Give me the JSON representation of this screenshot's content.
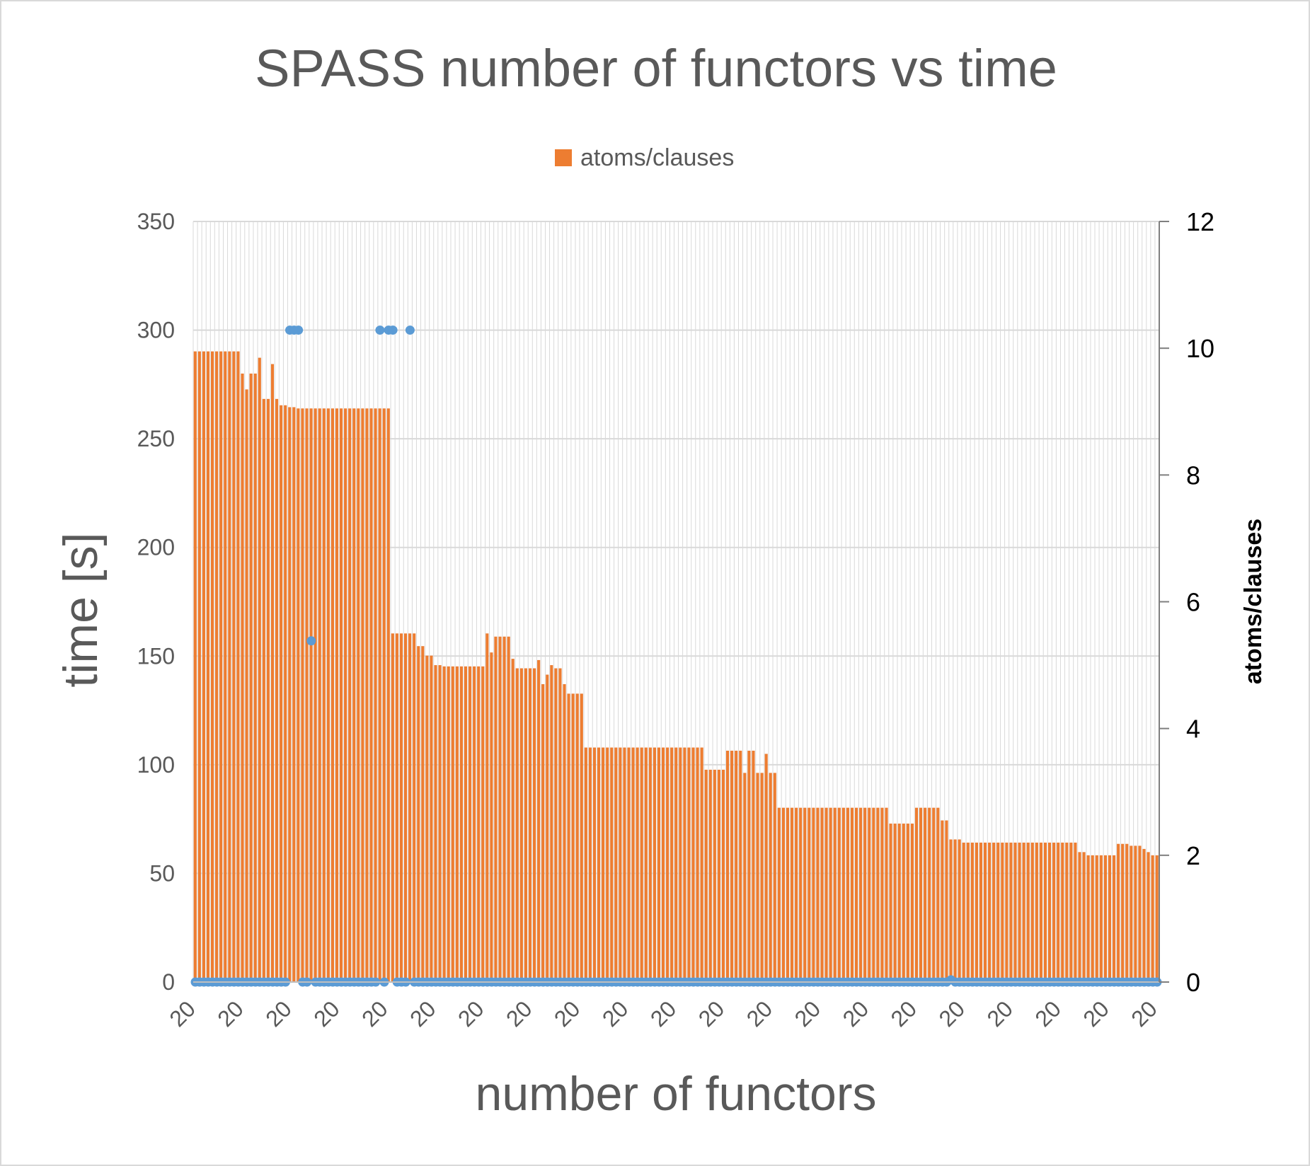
{
  "chart_data": {
    "type": "bar+scatter",
    "title": "SPASS number of functors vs time",
    "xlabel": "number of functors",
    "ylabel": "time [s]",
    "y2label": "atoms/clauses",
    "ylim": [
      0,
      350
    ],
    "y2lim": [
      0,
      12
    ],
    "yticks": [
      "0",
      "50",
      "100",
      "150",
      "200",
      "250",
      "300",
      "350"
    ],
    "y2ticks": [
      "0",
      "2",
      "4",
      "6",
      "8",
      "10",
      "12"
    ],
    "x_tick_label": "20",
    "x_tick_count": 21,
    "legend": {
      "entries": [
        "atoms/clauses"
      ],
      "position": "top"
    },
    "grid": true,
    "colors": {
      "bars": "#ED7D31",
      "points": "#5B9BD5",
      "grid": "#d9d9d9",
      "text": "#595959"
    },
    "bar_segments": [
      {
        "n": 11,
        "v": 9.95
      },
      {
        "n": 1,
        "v": 9.6
      },
      {
        "n": 1,
        "v": 9.35
      },
      {
        "n": 1,
        "v": 9.6
      },
      {
        "n": 1,
        "v": 9.6
      },
      {
        "n": 1,
        "v": 9.85
      },
      {
        "n": 2,
        "v": 9.2
      },
      {
        "n": 1,
        "v": 9.75
      },
      {
        "n": 1,
        "v": 9.2
      },
      {
        "n": 2,
        "v": 9.1
      },
      {
        "n": 2,
        "v": 9.07
      },
      {
        "n": 22,
        "v": 9.05
      },
      {
        "n": 6,
        "v": 5.5
      },
      {
        "n": 2,
        "v": 5.3
      },
      {
        "n": 2,
        "v": 5.15
      },
      {
        "n": 2,
        "v": 5.0
      },
      {
        "n": 10,
        "v": 4.98
      },
      {
        "n": 1,
        "v": 5.5
      },
      {
        "n": 1,
        "v": 5.2
      },
      {
        "n": 1,
        "v": 5.45
      },
      {
        "n": 3,
        "v": 5.45
      },
      {
        "n": 1,
        "v": 5.1
      },
      {
        "n": 5,
        "v": 4.95
      },
      {
        "n": 1,
        "v": 5.08
      },
      {
        "n": 1,
        "v": 4.7
      },
      {
        "n": 1,
        "v": 4.85
      },
      {
        "n": 1,
        "v": 5.0
      },
      {
        "n": 2,
        "v": 4.95
      },
      {
        "n": 1,
        "v": 4.7
      },
      {
        "n": 4,
        "v": 4.55
      },
      {
        "n": 28,
        "v": 3.7
      },
      {
        "n": 5,
        "v": 3.35
      },
      {
        "n": 4,
        "v": 3.65
      },
      {
        "n": 1,
        "v": 3.3
      },
      {
        "n": 2,
        "v": 3.65
      },
      {
        "n": 2,
        "v": 3.3
      },
      {
        "n": 1,
        "v": 3.6
      },
      {
        "n": 2,
        "v": 3.3
      },
      {
        "n": 26,
        "v": 2.75
      },
      {
        "n": 6,
        "v": 2.5
      },
      {
        "n": 6,
        "v": 2.75
      },
      {
        "n": 2,
        "v": 2.55
      },
      {
        "n": 3,
        "v": 2.25
      },
      {
        "n": 27,
        "v": 2.2
      },
      {
        "n": 2,
        "v": 2.05
      },
      {
        "n": 7,
        "v": 2.0
      },
      {
        "n": 3,
        "v": 2.18
      },
      {
        "n": 3,
        "v": 2.15
      },
      {
        "n": 1,
        "v": 2.1
      },
      {
        "n": 1,
        "v": 2.05
      },
      {
        "n": 2,
        "v": 2.0
      }
    ],
    "scatter_points": [
      {
        "i": 22,
        "time": 300
      },
      {
        "i": 23,
        "time": 300
      },
      {
        "i": 24,
        "time": 300
      },
      {
        "i": 27,
        "time": 157
      },
      {
        "i": 43,
        "time": 300
      },
      {
        "i": 45,
        "time": 300
      },
      {
        "i": 46,
        "time": 300
      },
      {
        "i": 50,
        "time": 300
      },
      {
        "i": 176,
        "time": 1
      }
    ],
    "baseline_time": 0,
    "baseline_gaps": [
      22,
      23,
      24,
      27,
      43,
      45,
      46,
      50
    ]
  }
}
